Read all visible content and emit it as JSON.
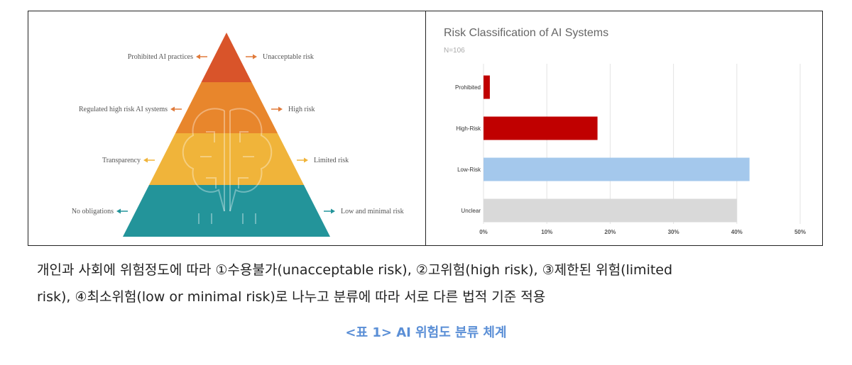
{
  "pyramid": {
    "levels": [
      {
        "left": "Prohibited AI practices",
        "right": "Unacceptable risk",
        "color": "#d9542a"
      },
      {
        "left": "Regulated high risk AI systems",
        "right": "High risk",
        "color": "#e8862c"
      },
      {
        "left": "Transparency",
        "right": "Limited risk",
        "color": "#f0b43a"
      },
      {
        "left": "No obligations",
        "right": "Low and minimal risk",
        "color": "#23949a"
      }
    ],
    "arrow_colors": [
      "#e07a3a",
      "#e07a3a",
      "#f0b43a",
      "#23949a"
    ]
  },
  "chart_data": {
    "type": "bar",
    "orientation": "horizontal",
    "title": "Risk Classification of AI Systems",
    "subtitle": "N=106",
    "categories": [
      "Prohibited",
      "High-Risk",
      "Low-Risk",
      "Unclear"
    ],
    "values": [
      1,
      18,
      42,
      40
    ],
    "colors": [
      "#c00000",
      "#c00000",
      "#a4c8ec",
      "#d9d9d9"
    ],
    "xlim": [
      0,
      50
    ],
    "xticks": [
      "0%",
      "10%",
      "20%",
      "30%",
      "40%",
      "50%"
    ],
    "x_unit": "%",
    "grid": true
  },
  "caption": {
    "line1": "개인과 사회에 위험정도에 따라 ①수용불가(unacceptable risk), ②고위험(high risk), ③제한된 위험(limited",
    "line2": "risk), ④최소위험(low or minimal risk)로 나누고 분류에 따라 서로 다른 법적 기준 적용"
  },
  "table_caption": "<표 1> AI 위험도 분류 체계"
}
